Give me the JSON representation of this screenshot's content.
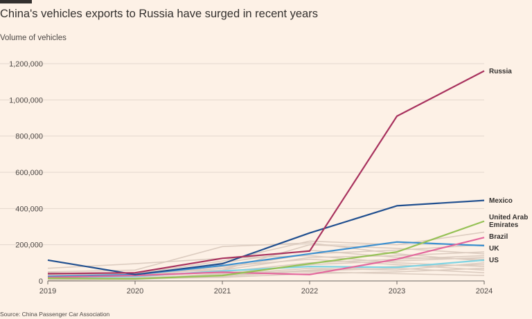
{
  "header": {
    "title": "China's vehicles exports to Russia have surged in recent years",
    "subtitle": "Volume of vehicles"
  },
  "footer": {
    "source": "Source: China Passenger Car Association"
  },
  "colors": {
    "background": "#fdf1e6",
    "gridline": "#e3d7cd",
    "axis": "#6b6560",
    "other_countries": "#dcccc0",
    "Russia": "#a8325e",
    "Mexico": "#204f8f",
    "United Arab Emirates": "#95c155",
    "Brazil": "#e3669c",
    "UK": "#3a8fd0",
    "US": "#7dd3e3"
  },
  "chart_data": {
    "type": "line",
    "x": [
      2019,
      2020,
      2021,
      2022,
      2023,
      2024
    ],
    "x_tick_labels": [
      "2019",
      "2020",
      "2021",
      "2022",
      "2023",
      "2024"
    ],
    "ylim": [
      0,
      1200000
    ],
    "y_ticks": [
      0,
      200000,
      400000,
      600000,
      800000,
      1000000,
      1200000
    ],
    "y_tick_labels": [
      "0",
      "200,000",
      "400,000",
      "600,000",
      "800,000",
      "1,000,000",
      "1,200,000"
    ],
    "ylabel": "Volume of vehicles",
    "grid": true,
    "highlighted_series": [
      {
        "name": "Russia",
        "values": [
          40000,
          45000,
          125000,
          165000,
          910000,
          1160000
        ]
      },
      {
        "name": "Mexico",
        "values": [
          115000,
          35000,
          95000,
          265000,
          415000,
          445000
        ]
      },
      {
        "name": "United Arab Emirates",
        "label_lines": [
          "United Arab",
          "Emirates"
        ],
        "values": [
          15000,
          12000,
          30000,
          95000,
          160000,
          330000
        ]
      },
      {
        "name": "Brazil",
        "values": [
          20000,
          30000,
          48000,
          35000,
          120000,
          240000
        ]
      },
      {
        "name": "UK",
        "values": [
          25000,
          35000,
          85000,
          150000,
          215000,
          195000
        ]
      },
      {
        "name": "US",
        "values": [
          20000,
          25000,
          55000,
          80000,
          75000,
          115000
        ]
      }
    ],
    "other_series": [
      [
        70000,
        95000,
        125000,
        140000,
        100000,
        80000
      ],
      [
        50000,
        60000,
        190000,
        210000,
        150000,
        110000
      ],
      [
        30000,
        40000,
        110000,
        220000,
        200000,
        270000
      ],
      [
        45000,
        30000,
        70000,
        150000,
        170000,
        200000
      ],
      [
        25000,
        20000,
        60000,
        130000,
        140000,
        160000
      ],
      [
        35000,
        25000,
        50000,
        100000,
        120000,
        140000
      ],
      [
        20000,
        15000,
        40000,
        90000,
        110000,
        130000
      ],
      [
        15000,
        10000,
        35000,
        70000,
        60000,
        100000
      ],
      [
        10000,
        15000,
        30000,
        60000,
        80000,
        90000
      ],
      [
        30000,
        35000,
        45000,
        50000,
        40000,
        30000
      ],
      [
        20000,
        25000,
        80000,
        120000,
        90000,
        60000
      ],
      [
        10000,
        12000,
        20000,
        40000,
        50000,
        70000
      ],
      [
        40000,
        45000,
        60000,
        200000,
        180000,
        150000
      ],
      [
        5000,
        8000,
        25000,
        55000,
        70000,
        45000
      ],
      [
        15000,
        20000,
        100000,
        170000,
        130000,
        120000
      ]
    ]
  }
}
